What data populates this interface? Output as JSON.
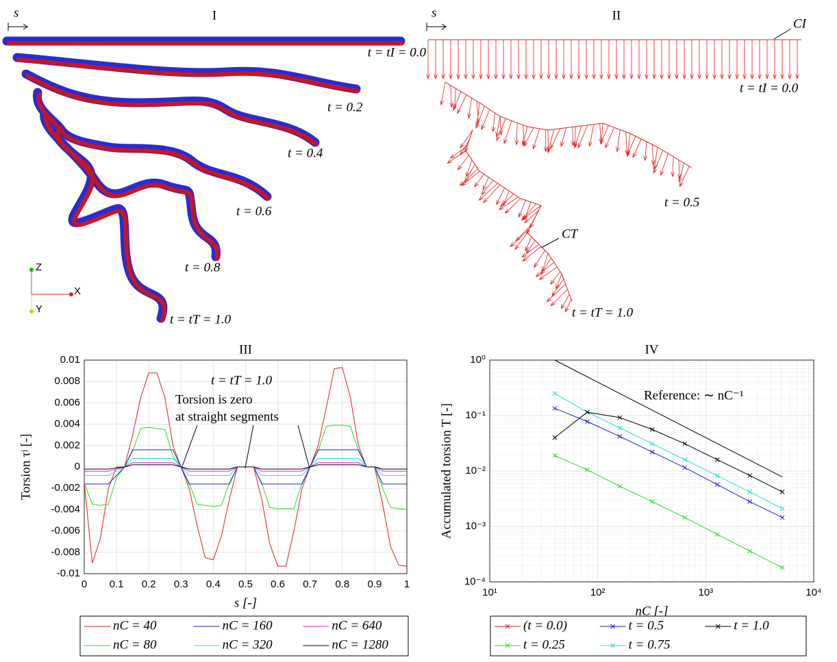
{
  "illustrations": {
    "panel_1": {
      "title": "I",
      "s_label": "s",
      "labels": [
        "t = tI = 0.0",
        "t = 0.2",
        "t = 0.4",
        "t = 0.6",
        "t = 0.8",
        "t = tT = 1.0"
      ],
      "axes": [
        "Z",
        "X",
        "Y"
      ]
    },
    "panel_2": {
      "title": "II",
      "s_label": "s",
      "curve_start": "CI",
      "curve_end": "CT",
      "labels": [
        "t = tI = 0.0",
        "t = 0.5",
        "t = tT = 1.0"
      ]
    }
  },
  "chart_data": [
    {
      "type": "line",
      "title": "III",
      "xlabel": "s [-]",
      "ylabel": "Torsion τʲ [-]",
      "x": [
        0,
        0.025,
        0.05,
        0.075,
        0.1,
        0.125,
        0.15,
        0.175,
        0.2,
        0.225,
        0.25,
        0.275,
        0.3,
        0.325,
        0.35,
        0.375,
        0.4,
        0.425,
        0.45,
        0.475,
        0.5,
        0.525,
        0.55,
        0.575,
        0.6,
        0.625,
        0.65,
        0.675,
        0.7,
        0.725,
        0.75,
        0.775,
        0.8,
        0.825,
        0.85,
        0.875,
        0.9,
        0.925,
        0.95,
        0.975,
        1
      ],
      "series": [
        {
          "name": "nC = 40",
          "color": "#e8191c",
          "values": [
            -0.0015,
            -0.009,
            -0.0067,
            -0.002,
            0,
            0,
            0.003,
            0.0065,
            0.0088,
            0.0088,
            0.0065,
            0.002,
            0,
            -0.002,
            -0.0055,
            -0.0085,
            -0.0087,
            -0.0065,
            -0.003,
            0,
            0,
            0,
            -0.003,
            -0.0072,
            -0.0093,
            -0.0093,
            -0.006,
            -0.002,
            0,
            0.002,
            0.0055,
            0.0092,
            0.0093,
            0.0065,
            0.002,
            0,
            0,
            -0.0035,
            -0.0075,
            -0.0092,
            -0.0093
          ]
        },
        {
          "name": "nC = 80",
          "color": "#22dd22",
          "values": [
            -0.0015,
            -0.0035,
            -0.0036,
            -0.0035,
            -0.001,
            0,
            0.0015,
            0.0036,
            0.0037,
            0.0036,
            0.0035,
            0.001,
            0,
            -0.0015,
            -0.0035,
            -0.0036,
            -0.0037,
            -0.0036,
            -0.0015,
            0,
            0,
            0,
            -0.0015,
            -0.0038,
            -0.0039,
            -0.0039,
            -0.0039,
            -0.0015,
            0,
            0.0015,
            0.0038,
            0.0039,
            0.0039,
            0.0038,
            0.0015,
            0,
            0,
            -0.002,
            -0.0038,
            -0.0039,
            -0.004
          ]
        },
        {
          "name": "nC = 160",
          "color": "#1f1fd8",
          "values": [
            -0.0016,
            -0.0016,
            -0.0016,
            -0.0016,
            -0.0008,
            0,
            0.0016,
            0.0016,
            0.0016,
            0.0016,
            0.0016,
            0.0016,
            0,
            -0.0016,
            -0.0016,
            -0.0016,
            -0.0016,
            -0.0016,
            -0.0016,
            0,
            0,
            0,
            -0.0016,
            -0.0016,
            -0.0016,
            -0.0016,
            -0.0016,
            -0.0016,
            0,
            0.0016,
            0.0016,
            0.0016,
            0.0016,
            0.0016,
            0.0016,
            0,
            0,
            -0.0016,
            -0.0016,
            -0.0016,
            -0.0016
          ]
        },
        {
          "name": "nC = 320",
          "color": "#22dddd",
          "values": [
            -0.0008,
            -0.0008,
            -0.0008,
            -0.0008,
            -0.0004,
            0,
            0.0008,
            0.0008,
            0.0008,
            0.0008,
            0.0008,
            0.0008,
            0,
            -0.0008,
            -0.0008,
            -0.0008,
            -0.0008,
            -0.0008,
            -0.0008,
            0,
            0,
            0,
            -0.0008,
            -0.0008,
            -0.0008,
            -0.0008,
            -0.0008,
            -0.0008,
            0,
            0.0008,
            0.0008,
            0.0008,
            0.0008,
            0.0008,
            0.0008,
            0,
            0,
            -0.0008,
            -0.0008,
            -0.0008,
            -0.0008
          ]
        },
        {
          "name": "nC = 640",
          "color": "#dd22dd",
          "values": [
            -0.0004,
            -0.0004,
            -0.0004,
            -0.0004,
            -0.0002,
            0,
            0.0004,
            0.0004,
            0.0004,
            0.0004,
            0.0004,
            0.0004,
            0,
            -0.0004,
            -0.0004,
            -0.0004,
            -0.0004,
            -0.0004,
            -0.0004,
            0,
            0,
            0,
            -0.0004,
            -0.0004,
            -0.0004,
            -0.0004,
            -0.0004,
            -0.0004,
            0,
            0.0004,
            0.0004,
            0.0004,
            0.0004,
            0.0004,
            0.0004,
            0,
            0,
            -0.0004,
            -0.0004,
            -0.0004,
            -0.0004
          ]
        },
        {
          "name": "nC = 1280",
          "color": "#000000",
          "values": [
            -0.0002,
            -0.0002,
            -0.0002,
            -0.0002,
            -0.0001,
            0,
            0.0002,
            0.0002,
            0.0002,
            0.0002,
            0.0002,
            0.0002,
            0,
            -0.0002,
            -0.0002,
            -0.0002,
            -0.0002,
            -0.0002,
            -0.0002,
            0,
            0,
            0,
            -0.0002,
            -0.0002,
            -0.0002,
            -0.0002,
            -0.0002,
            -0.0002,
            0,
            0.0002,
            0.0002,
            0.0002,
            0.0002,
            0.0002,
            0.0002,
            0,
            0,
            -0.0002,
            -0.0002,
            -0.0002,
            -0.0002
          ]
        }
      ],
      "xlim": [
        0,
        1
      ],
      "ylim": [
        -0.01,
        0.01
      ],
      "xticks": [
        0,
        0.1,
        0.2,
        0.3,
        0.4,
        0.5,
        0.6,
        0.7,
        0.8,
        0.9,
        1
      ],
      "yticks": [
        -0.01,
        -0.008,
        -0.006,
        -0.004,
        -0.002,
        0,
        0.002,
        0.004,
        0.006,
        0.008,
        0.01
      ],
      "grid": true,
      "legend": "below",
      "annotations": [
        "t = tT = 1.0",
        "Torsion is zero",
        "at straight segments"
      ]
    },
    {
      "type": "line",
      "title": "IV",
      "xlabel": "nC [-]",
      "ylabel": "Accumulated torsion T [-]",
      "log_x": true,
      "log_y": true,
      "marker": "x",
      "x": [
        40,
        80,
        160,
        320,
        640,
        1280,
        2560,
        5120
      ],
      "series": [
        {
          "name": "(t = 0.0)",
          "color": "#e8191c",
          "values": [
            null,
            null,
            null,
            null,
            null,
            null,
            null,
            null
          ]
        },
        {
          "name": "t = 0.25",
          "color": "#22dd22",
          "values": [
            0.019,
            0.0105,
            0.0053,
            0.0028,
            0.00145,
            0.00072,
            0.00036,
            0.00018
          ]
        },
        {
          "name": "t = 0.5",
          "color": "#1f1fd8",
          "values": [
            0.135,
            0.078,
            0.042,
            0.022,
            0.0115,
            0.0057,
            0.0028,
            0.00145
          ]
        },
        {
          "name": "t = 0.75",
          "color": "#22dddd",
          "values": [
            0.25,
            0.115,
            0.06,
            0.031,
            0.016,
            0.0082,
            0.0042,
            0.0021
          ]
        },
        {
          "name": "t = 1.0",
          "color": "#000000",
          "values": [
            0.04,
            0.115,
            0.092,
            0.056,
            0.031,
            0.016,
            0.0083,
            0.0042
          ]
        }
      ],
      "reference": {
        "text": "Reference: ∼ nC⁻¹",
        "color": "#000000",
        "x": [
          40,
          5120
        ],
        "values": [
          1,
          0.0078
        ]
      },
      "xlim": [
        10,
        10000
      ],
      "ylim": [
        0.0001,
        1
      ],
      "xticks": [
        {
          "value": 10,
          "label": "10¹"
        },
        {
          "value": 100,
          "label": "10²"
        },
        {
          "value": 1000,
          "label": "10³"
        },
        {
          "value": 10000,
          "label": "10⁴"
        }
      ],
      "yticks": [
        {
          "value": 0.0001,
          "label": "10⁻⁴"
        },
        {
          "value": 0.001,
          "label": "10⁻³"
        },
        {
          "value": 0.01,
          "label": "10⁻²"
        },
        {
          "value": 0.1,
          "label": "10⁻¹"
        },
        {
          "value": 1,
          "label": "10⁰"
        }
      ],
      "grid": true,
      "minor_grid": true,
      "legend": "below"
    }
  ]
}
